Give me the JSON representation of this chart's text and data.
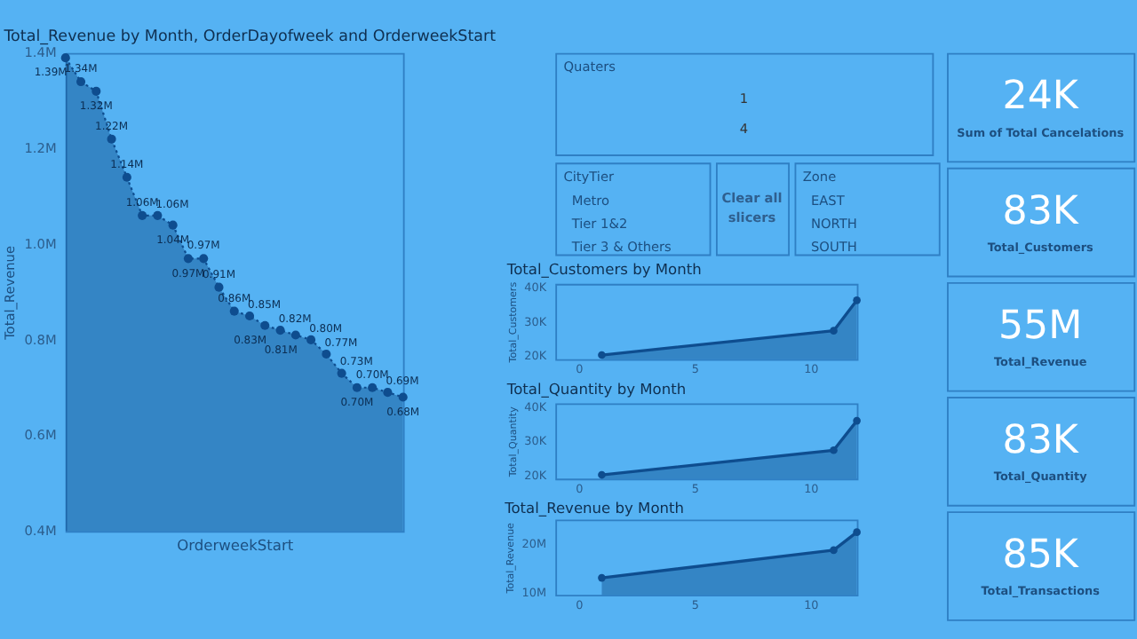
{
  "chart_data": [
    {
      "type": "area",
      "title": "Total_Revenue by Month, OrderDayofweek and OrderweekStart",
      "xlabel": "OrderweekStart",
      "ylabel": "Total_Revenue",
      "categories": [
        null,
        null,
        null,
        null,
        null,
        null,
        null,
        null,
        null,
        null,
        null,
        null,
        null,
        null,
        null,
        null,
        null,
        null,
        null,
        null,
        null,
        null,
        null
      ],
      "series": [
        {
          "color": "#0e4d8f",
          "values": [
            1.39,
            1.34,
            1.32,
            1.22,
            1.14,
            1.06,
            1.06,
            1.04,
            0.97,
            0.97,
            0.91,
            0.86,
            0.85,
            0.83,
            0.82,
            0.81,
            0.8,
            0.77,
            0.73,
            0.7,
            0.7,
            0.69,
            0.68
          ],
          "value_labels": [
            "1.39M",
            "1.34M",
            "1.32M",
            "1.22M",
            "1.14M",
            "1.06M",
            "1.06M",
            "1.04M",
            "0.97M",
            "0.97M",
            "0.91M",
            "0.86M",
            "0.85M",
            "0.83M",
            "0.82M",
            "0.81M",
            "0.80M",
            "0.77M",
            "0.73M",
            "0.70M",
            "0.70M",
            "0.69M",
            "0.68M"
          ]
        }
      ],
      "ylim": [
        0.4,
        1.4
      ],
      "yticks": [
        {
          "value": 0.4,
          "label": "0.4M"
        },
        {
          "value": 0.6,
          "label": "0.6M"
        },
        {
          "value": 0.8,
          "label": "0.8M"
        },
        {
          "value": 1.0,
          "label": "1.0M"
        },
        {
          "value": 1.2,
          "label": "1.2M"
        },
        {
          "value": 1.4,
          "label": "1.4M"
        }
      ],
      "marker": "circle",
      "line_style": "dotted",
      "grid": false
    },
    {
      "type": "other",
      "title": "Quaters",
      "annotations": [
        "1",
        "4"
      ]
    },
    {
      "type": "other",
      "title": "CityTier",
      "annotations": [
        "Metro",
        "Tier 1&2",
        "Tier 3 & Others"
      ]
    },
    {
      "type": "other",
      "annotations": [
        "Clear all slicers"
      ]
    },
    {
      "type": "other",
      "title": "Zone",
      "annotations": [
        "EAST",
        "NORTH",
        "SOUTH"
      ]
    },
    {
      "type": "area",
      "title": "Total_Customers by Month",
      "ylabel": "Total_Customers",
      "x": [
        1,
        11,
        12
      ],
      "series": [
        {
          "color": "#0e4d8f",
          "values": [
            20.2,
            27.3,
            36.2
          ]
        }
      ],
      "xlim": [
        -1,
        12
      ],
      "xticks": [
        0,
        5,
        10
      ],
      "ylim": [
        19,
        41
      ],
      "yticks": [
        {
          "value": 20,
          "label": "20K"
        },
        {
          "value": 30,
          "label": "30K"
        },
        {
          "value": 40,
          "label": "40K"
        }
      ],
      "marker": "circle",
      "line_style": "solid",
      "grid": false
    },
    {
      "type": "area",
      "title": "Total_Quantity by Month",
      "ylabel": "Total_Quantity",
      "x": [
        1,
        11,
        12
      ],
      "series": [
        {
          "color": "#0e4d8f",
          "values": [
            20.1,
            27.3,
            35.9
          ]
        }
      ],
      "xlim": [
        -1,
        12
      ],
      "xticks": [
        0,
        5,
        10
      ],
      "ylim": [
        19,
        41
      ],
      "yticks": [
        {
          "value": 20,
          "label": "20K"
        },
        {
          "value": 30,
          "label": "30K"
        },
        {
          "value": 40,
          "label": "40K"
        }
      ],
      "marker": "circle",
      "line_style": "solid",
      "grid": false
    },
    {
      "type": "area",
      "title": "Total_Revenue by Month",
      "ylabel": "Total_Revenue",
      "x": [
        1,
        11,
        12
      ],
      "series": [
        {
          "color": "#0e4d8f",
          "values": [
            13.0,
            18.7,
            22.4
          ]
        }
      ],
      "xlim": [
        -1,
        12
      ],
      "xticks": [
        0,
        5,
        10
      ],
      "ylim": [
        9.5,
        25
      ],
      "yticks": [
        {
          "value": 10,
          "label": "10M"
        },
        {
          "value": 20,
          "label": "20M"
        }
      ],
      "marker": "circle",
      "line_style": "solid",
      "grid": false
    },
    {
      "type": "other",
      "annotations": [
        "24K",
        "Sum of Total Cancelations"
      ]
    },
    {
      "type": "other",
      "annotations": [
        "83K",
        "Total_Customers"
      ]
    },
    {
      "type": "other",
      "annotations": [
        "55M",
        "Total_Revenue"
      ]
    },
    {
      "type": "other",
      "annotations": [
        "83K",
        "Total_Quantity"
      ]
    },
    {
      "type": "other",
      "annotations": [
        "85K",
        "Total_Transactions"
      ]
    }
  ]
}
